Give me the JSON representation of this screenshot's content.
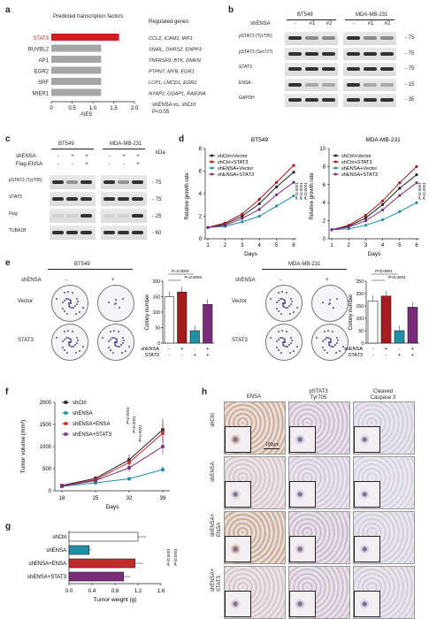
{
  "panels": {
    "a": "a",
    "b": "b",
    "c": "c",
    "d": "d",
    "e": "e",
    "f": "f",
    "g": "g",
    "h": "h"
  },
  "panel_a": {
    "title": "Predicted transcription factors",
    "genes_header": "Regulated genes",
    "xlabel": "-NES",
    "note1": "shENSA vs. shCtrl",
    "note2": "P<0.05",
    "highlight_color": "#cc1f1f",
    "bar_color": "#a6a6a6",
    "chart_data": {
      "type": "bar",
      "orientation": "horizontal",
      "categories": [
        "STAT3",
        "RUVBL2",
        "AP1",
        "EGR2",
        "SRF",
        "MIER1"
      ],
      "values": [
        1.63,
        1.2,
        1.2,
        1.2,
        1.2,
        1.2
      ],
      "genes": [
        "CCL2, ICAM1, IRF1",
        "SNAIL, DHRS2, ENPP3",
        "TNFRSF9, BTK, DMKN",
        "PTPN7, MYB, EGR1",
        "LCP1, LMCD1, EGR1",
        "NYAP2, GDAP1, RAB39A"
      ],
      "xticks": [
        "0",
        "0.5",
        "1.0",
        "1.5",
        "2.0"
      ],
      "xlim": [
        0,
        2.0
      ]
    }
  },
  "panel_b": {
    "cell_lines": [
      "BT549",
      "MDA-MB-231"
    ],
    "shrna_label": "shENSA",
    "lanes": [
      "-",
      "#1",
      "#2",
      "-",
      "#1",
      "#2"
    ],
    "rows": [
      {
        "label": "pSTAT3 (Tyr705)",
        "kda": "75"
      },
      {
        "label": "pSTAT3 (Ser727)",
        "kda": "75"
      },
      {
        "label": "STAT3",
        "kda": "75"
      },
      {
        "label": "ENSA",
        "kda": "15"
      },
      {
        "label": "GAPDH",
        "kda": "35"
      }
    ]
  },
  "panel_c": {
    "cell_lines": [
      "BT549",
      "MDA-MB-231"
    ],
    "kda_header": "kDa",
    "cond_rows": [
      {
        "label": "shENSA",
        "values": [
          "-",
          "+",
          "+",
          "-",
          "+",
          "+"
        ]
      },
      {
        "label": "Flag-ENSA",
        "values": [
          "-",
          "-",
          "+",
          "-",
          "-",
          "+"
        ]
      }
    ],
    "rows": [
      {
        "label": "pSTAT3 (Tyr705)",
        "kda": "75"
      },
      {
        "label": "STAT3",
        "kda": "75"
      },
      {
        "label": "Flag",
        "kda": "25"
      },
      {
        "label": "TUBA1B",
        "kda": "60"
      }
    ]
  },
  "panel_d": {
    "ylabel": "Relative growth rate",
    "legend": [
      "shCtrl+Vector",
      "shCtrl+STAT3",
      "shENSA+Vector",
      "shENSA+STAT3"
    ],
    "colors": [
      "#222222",
      "#a61c1c",
      "#1f8fa6",
      "#7a2b7a"
    ],
    "chart_data": [
      {
        "type": "line",
        "title": "BT549",
        "x": [
          1,
          2,
          3,
          4,
          5,
          6
        ],
        "xlabel": "Days",
        "ylim": [
          0,
          8
        ],
        "yticks": [
          "0",
          "2",
          "4",
          "6",
          "8"
        ],
        "pvals": [
          "P<0.0001",
          "P<0.0001",
          "P<0.0001"
        ],
        "series": [
          {
            "name": "shCtrl+Vector",
            "values": [
              1.0,
              1.3,
              2.0,
              3.1,
              4.6,
              5.9
            ]
          },
          {
            "name": "shCtrl+STAT3",
            "values": [
              1.0,
              1.4,
              2.2,
              3.5,
              5.0,
              6.5
            ]
          },
          {
            "name": "shENSA+Vector",
            "values": [
              1.0,
              1.1,
              1.5,
              2.0,
              2.9,
              3.8
            ]
          },
          {
            "name": "shENSA+STAT3",
            "values": [
              1.0,
              1.2,
              1.8,
              2.6,
              3.9,
              5.0
            ]
          }
        ]
      },
      {
        "type": "line",
        "title": "MDA-MB-231",
        "x": [
          1,
          2,
          3,
          4,
          5,
          6
        ],
        "xlabel": "Days",
        "ylim": [
          0,
          10
        ],
        "yticks": [
          "0",
          "2",
          "4",
          "6",
          "8",
          "10"
        ],
        "pvals": [
          "P<0.0001",
          "P<0.0001"
        ],
        "series": [
          {
            "name": "shCtrl+Vector",
            "values": [
              1.0,
              1.4,
              2.3,
              3.8,
              5.6,
              7.1
            ]
          },
          {
            "name": "shCtrl+STAT3",
            "values": [
              1.0,
              1.5,
              2.6,
              4.2,
              6.2,
              8.0
            ]
          },
          {
            "name": "shENSA+Vector",
            "values": [
              1.0,
              1.1,
              1.5,
              2.1,
              3.0,
              4.0
            ]
          },
          {
            "name": "shENSA+STAT3",
            "values": [
              1.0,
              1.3,
              2.0,
              3.2,
              4.8,
              6.2
            ]
          }
        ]
      }
    ]
  },
  "panel_e": {
    "cell_lines": [
      "BT549",
      "MDA-MB-231"
    ],
    "shrna_label": "shENSA",
    "col_signs": [
      "-",
      "+"
    ],
    "row_labels": [
      "Vector",
      "STAT3"
    ],
    "x_row_labels": [
      "shENSA",
      "STAT3"
    ],
    "x_row_values": [
      [
        "-",
        "+",
        "-",
        "+"
      ],
      [
        "-",
        "-",
        "+",
        "+"
      ]
    ],
    "bar_colors": [
      "#ffffff",
      "#a61c1c",
      "#1f8fa6",
      "#7a2b7a"
    ],
    "chart_data": [
      {
        "type": "bar",
        "ylabel": "Colony number",
        "ylim": [
          0,
          200
        ],
        "yticks": [
          "0",
          "50",
          "100",
          "150",
          "200"
        ],
        "values": [
          150,
          165,
          40,
          125
        ],
        "pvals": [
          "P=0.0004",
          "P=0.0004"
        ]
      },
      {
        "type": "bar",
        "ylabel": "Colony number",
        "ylim": [
          0,
          250
        ],
        "yticks": [
          "0",
          "50",
          "100",
          "150",
          "200",
          "250"
        ],
        "values": [
          170,
          190,
          50,
          145
        ],
        "pvals": [
          "P<0.0001",
          "P<0.0001"
        ]
      }
    ]
  },
  "panel_f": {
    "chart_data": {
      "type": "line",
      "ylabel": "Tumor volume (mm³)",
      "xlabel": "Days",
      "x": [
        18,
        25,
        32,
        39
      ],
      "ylim": [
        0,
        2000
      ],
      "yticks": [
        "0",
        "500",
        "1000",
        "1500",
        "2000"
      ],
      "legend": [
        "shCtrl",
        "shENSA",
        "shENSA+ENSA",
        "shENSA+STAT3"
      ],
      "pvals": [
        "P<0.0001",
        "P<0.0001",
        "P<0.0001"
      ],
      "series": [
        {
          "name": "shCtrl",
          "values": [
            120,
            280,
            700,
            1380
          ]
        },
        {
          "name": "shENSA",
          "values": [
            100,
            180,
            270,
            480
          ]
        },
        {
          "name": "shENSA+ENSA",
          "values": [
            110,
            250,
            640,
            1300
          ]
        },
        {
          "name": "shENSA+STAT3",
          "values": [
            105,
            230,
            520,
            1000
          ]
        }
      ]
    },
    "colors": [
      "#222222",
      "#1f8fa6",
      "#c42a2a",
      "#7a2b7a"
    ]
  },
  "panel_g": {
    "chart_data": {
      "type": "bar",
      "orientation": "horizontal",
      "xlabel": "Tumor weight (g)",
      "categories": [
        "shCtrl",
        "shENSA",
        "shENSA+ENSA",
        "shENSA+STAT3"
      ],
      "values": [
        1.2,
        0.35,
        1.15,
        0.95
      ],
      "xticks": [
        "0.0",
        "0.4",
        "0.8",
        "1.2",
        "1.6"
      ],
      "xlim": [
        0,
        1.6
      ],
      "pvals": [
        "P<0.0001",
        "P<0.0001"
      ]
    },
    "colors": [
      "#ffffff",
      "#1f8fa6",
      "#c42a2a",
      "#7a2b7a"
    ]
  },
  "panel_h": {
    "col_headers": [
      "ENSA",
      "pSTAT3\nTyr705",
      "Cleaved\nCaspase 3"
    ],
    "row_labels": [
      "shCtrl",
      "shENSA",
      "shENSA+\nENSA",
      "shENSA+\nSTAT3"
    ],
    "scale": "100μm"
  }
}
